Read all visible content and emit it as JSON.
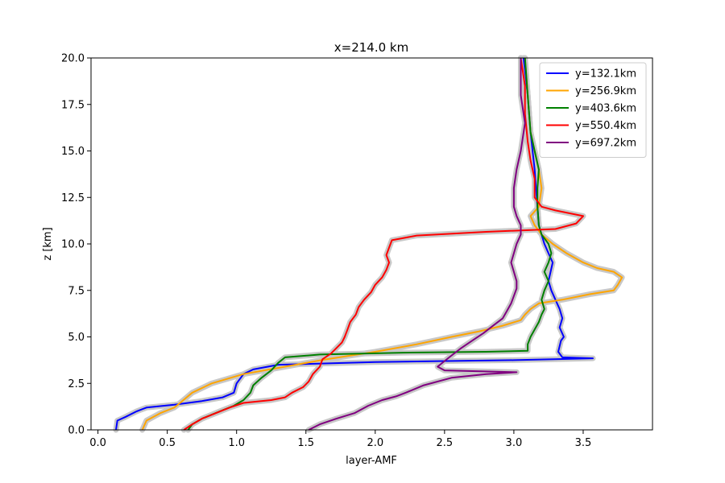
{
  "chart_data": {
    "type": "line",
    "title": "x=214.0 km",
    "xlabel": "layer-AMF",
    "ylabel": "z [km]",
    "xlim": [
      -0.05,
      4.0
    ],
    "ylim": [
      0,
      20
    ],
    "xticks": [
      "0.0",
      "0.5",
      "1.0",
      "1.5",
      "2.0",
      "2.5",
      "3.0",
      "3.5"
    ],
    "yticks": [
      "0.0",
      "2.5",
      "5.0",
      "7.5",
      "10.0",
      "12.5",
      "15.0",
      "17.5",
      "20.0"
    ],
    "grid": false,
    "legend_position": "top-right",
    "band_color": "#c8c8c8",
    "series": [
      {
        "name": "y=132.1km",
        "color": "#0000ff",
        "points": [
          [
            0.13,
            0
          ],
          [
            0.14,
            0.5
          ],
          [
            0.2,
            0.7
          ],
          [
            0.28,
            1.0
          ],
          [
            0.35,
            1.2
          ],
          [
            0.55,
            1.35
          ],
          [
            0.75,
            1.55
          ],
          [
            0.9,
            1.75
          ],
          [
            0.98,
            2.0
          ],
          [
            1.0,
            2.5
          ],
          [
            1.05,
            3.0
          ],
          [
            1.12,
            3.25
          ],
          [
            1.3,
            3.5
          ],
          [
            2.0,
            3.65
          ],
          [
            3.0,
            3.75
          ],
          [
            3.57,
            3.85
          ],
          [
            3.35,
            3.9
          ],
          [
            3.32,
            4.2
          ],
          [
            3.34,
            4.8
          ],
          [
            3.36,
            5.0
          ],
          [
            3.33,
            5.5
          ],
          [
            3.35,
            6.0
          ],
          [
            3.33,
            6.5
          ],
          [
            3.3,
            7.0
          ],
          [
            3.27,
            7.5
          ],
          [
            3.25,
            8.0
          ],
          [
            3.28,
            9.0
          ],
          [
            3.25,
            9.5
          ],
          [
            3.22,
            10.0
          ],
          [
            3.2,
            10.5
          ],
          [
            3.18,
            11.0
          ],
          [
            3.17,
            12.0
          ],
          [
            3.16,
            13.0
          ],
          [
            3.15,
            14.0
          ],
          [
            3.12,
            16.0
          ],
          [
            3.1,
            18.0
          ],
          [
            3.07,
            20.0
          ]
        ]
      },
      {
        "name": "y=256.9km",
        "color": "#ffa500",
        "points": [
          [
            0.32,
            0
          ],
          [
            0.35,
            0.5
          ],
          [
            0.45,
            0.9
          ],
          [
            0.55,
            1.2
          ],
          [
            0.6,
            1.5
          ],
          [
            0.68,
            2.0
          ],
          [
            0.82,
            2.5
          ],
          [
            1.05,
            3.0
          ],
          [
            1.35,
            3.4
          ],
          [
            1.65,
            3.8
          ],
          [
            2.0,
            4.2
          ],
          [
            2.3,
            4.6
          ],
          [
            2.55,
            5.0
          ],
          [
            2.75,
            5.3
          ],
          [
            2.92,
            5.6
          ],
          [
            3.05,
            5.9
          ],
          [
            3.08,
            6.2
          ],
          [
            3.12,
            6.5
          ],
          [
            3.18,
            6.8
          ],
          [
            3.35,
            7.0
          ],
          [
            3.55,
            7.3
          ],
          [
            3.72,
            7.5
          ],
          [
            3.75,
            7.8
          ],
          [
            3.78,
            8.2
          ],
          [
            3.72,
            8.5
          ],
          [
            3.6,
            8.7
          ],
          [
            3.5,
            9.0
          ],
          [
            3.38,
            9.5
          ],
          [
            3.28,
            10.0
          ],
          [
            3.2,
            10.5
          ],
          [
            3.15,
            11.0
          ],
          [
            3.12,
            11.5
          ],
          [
            3.18,
            12.0
          ],
          [
            3.2,
            13.0
          ],
          [
            3.18,
            14.0
          ],
          [
            3.15,
            15.0
          ],
          [
            3.12,
            16.0
          ],
          [
            3.1,
            18.0
          ],
          [
            3.08,
            20.0
          ]
        ]
      },
      {
        "name": "y=403.6km",
        "color": "#008000",
        "points": [
          [
            0.65,
            0
          ],
          [
            0.68,
            0.3
          ],
          [
            0.75,
            0.6
          ],
          [
            0.88,
            1.0
          ],
          [
            0.98,
            1.3
          ],
          [
            1.05,
            1.6
          ],
          [
            1.1,
            2.0
          ],
          [
            1.12,
            2.4
          ],
          [
            1.18,
            2.8
          ],
          [
            1.25,
            3.2
          ],
          [
            1.3,
            3.6
          ],
          [
            1.35,
            3.9
          ],
          [
            1.6,
            4.05
          ],
          [
            2.2,
            4.15
          ],
          [
            2.8,
            4.2
          ],
          [
            3.1,
            4.25
          ],
          [
            3.1,
            4.6
          ],
          [
            3.12,
            5.0
          ],
          [
            3.15,
            5.4
          ],
          [
            3.18,
            5.8
          ],
          [
            3.2,
            6.2
          ],
          [
            3.22,
            6.5
          ],
          [
            3.2,
            7.0
          ],
          [
            3.22,
            7.5
          ],
          [
            3.25,
            8.0
          ],
          [
            3.22,
            8.5
          ],
          [
            3.25,
            9.0
          ],
          [
            3.27,
            9.5
          ],
          [
            3.25,
            10.0
          ],
          [
            3.2,
            10.5
          ],
          [
            3.18,
            11.0
          ],
          [
            3.17,
            12.0
          ],
          [
            3.17,
            13.0
          ],
          [
            3.18,
            14.0
          ],
          [
            3.15,
            15.0
          ],
          [
            3.12,
            16.0
          ],
          [
            3.1,
            18.0
          ],
          [
            3.08,
            20.0
          ]
        ]
      },
      {
        "name": "y=550.4km",
        "color": "#ff0000",
        "points": [
          [
            0.62,
            0
          ],
          [
            0.68,
            0.3
          ],
          [
            0.75,
            0.6
          ],
          [
            0.85,
            0.9
          ],
          [
            0.95,
            1.2
          ],
          [
            1.05,
            1.45
          ],
          [
            1.25,
            1.6
          ],
          [
            1.35,
            1.75
          ],
          [
            1.4,
            2.0
          ],
          [
            1.48,
            2.3
          ],
          [
            1.52,
            2.6
          ],
          [
            1.55,
            3.0
          ],
          [
            1.6,
            3.4
          ],
          [
            1.62,
            3.8
          ],
          [
            1.68,
            4.1
          ],
          [
            1.72,
            4.4
          ],
          [
            1.76,
            4.7
          ],
          [
            1.78,
            5.0
          ],
          [
            1.8,
            5.4
          ],
          [
            1.82,
            5.8
          ],
          [
            1.86,
            6.2
          ],
          [
            1.88,
            6.6
          ],
          [
            1.92,
            7.0
          ],
          [
            1.97,
            7.4
          ],
          [
            2.0,
            7.8
          ],
          [
            2.05,
            8.2
          ],
          [
            2.08,
            8.6
          ],
          [
            2.1,
            9.0
          ],
          [
            2.08,
            9.4
          ],
          [
            2.1,
            9.8
          ],
          [
            2.12,
            10.2
          ],
          [
            2.3,
            10.45
          ],
          [
            2.8,
            10.65
          ],
          [
            3.3,
            10.8
          ],
          [
            3.45,
            11.1
          ],
          [
            3.5,
            11.5
          ],
          [
            3.3,
            11.8
          ],
          [
            3.2,
            12.0
          ],
          [
            3.15,
            12.5
          ],
          [
            3.15,
            13.5
          ],
          [
            3.12,
            14.5
          ],
          [
            3.1,
            15.5
          ],
          [
            3.08,
            17.0
          ],
          [
            3.08,
            18.5
          ],
          [
            3.05,
            20.0
          ]
        ]
      },
      {
        "name": "y=697.2km",
        "color": "#800080",
        "points": [
          [
            1.52,
            0
          ],
          [
            1.6,
            0.3
          ],
          [
            1.72,
            0.6
          ],
          [
            1.85,
            0.9
          ],
          [
            1.95,
            1.3
          ],
          [
            2.05,
            1.6
          ],
          [
            2.15,
            1.8
          ],
          [
            2.22,
            2.0
          ],
          [
            2.35,
            2.4
          ],
          [
            2.55,
            2.8
          ],
          [
            2.8,
            3.0
          ],
          [
            3.02,
            3.1
          ],
          [
            2.5,
            3.2
          ],
          [
            2.45,
            3.4
          ],
          [
            2.5,
            3.7
          ],
          [
            2.55,
            4.0
          ],
          [
            2.62,
            4.4
          ],
          [
            2.7,
            4.8
          ],
          [
            2.78,
            5.2
          ],
          [
            2.85,
            5.6
          ],
          [
            2.92,
            6.0
          ],
          [
            2.95,
            6.4
          ],
          [
            2.98,
            6.8
          ],
          [
            3.0,
            7.2
          ],
          [
            3.02,
            7.6
          ],
          [
            3.02,
            8.0
          ],
          [
            3.0,
            8.5
          ],
          [
            2.98,
            9.0
          ],
          [
            3.0,
            9.5
          ],
          [
            3.02,
            10.0
          ],
          [
            3.05,
            10.5
          ],
          [
            3.05,
            11.0
          ],
          [
            3.02,
            11.5
          ],
          [
            3.0,
            12.0
          ],
          [
            3.0,
            13.0
          ],
          [
            3.02,
            14.0
          ],
          [
            3.05,
            15.0
          ],
          [
            3.08,
            16.5
          ],
          [
            3.05,
            18.0
          ],
          [
            3.05,
            20.0
          ]
        ]
      }
    ]
  }
}
